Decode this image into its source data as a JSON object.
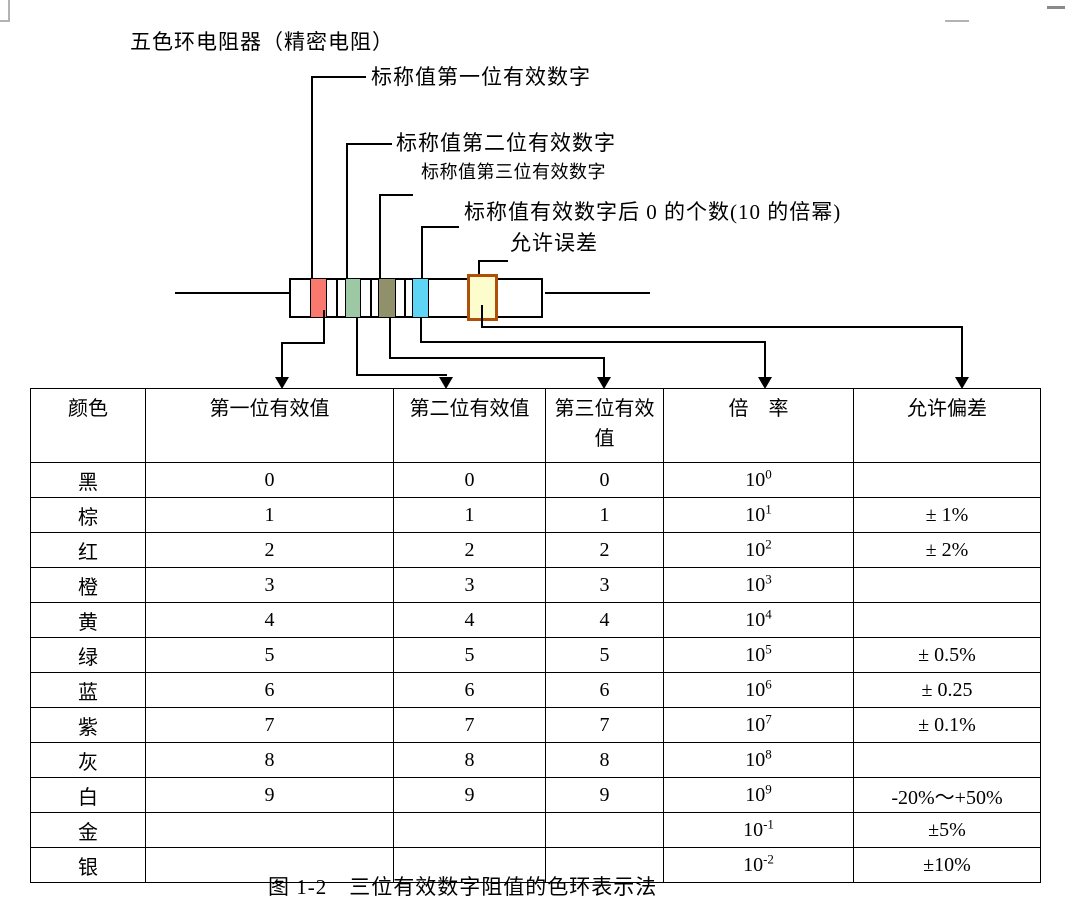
{
  "page": {
    "title": "五色环电阻器（精密电阻）",
    "caption": "图 1-2　三位有效数字阻值的色环表示法"
  },
  "labels": {
    "digit1": "标称值第一位有效数字",
    "digit2": "标称值第二位有效数字",
    "digit3": "标称值第三位有效数字",
    "multiplier": "标称值有效数字后 0 的个数(10 的倍幂)",
    "tolerance": "允许误差"
  },
  "resistor": {
    "band_colors": {
      "digit1": "#f9796f",
      "digit2": "#9cc9a4",
      "digit3": "#90906b",
      "multiplier": "#5ed5f5",
      "tolerance_fill": "#fcfccd",
      "tolerance_border": "#b04f08"
    }
  },
  "table": {
    "headers": [
      "颜色",
      "第一位有效值",
      "第二位有效值",
      "第三位有效值",
      "倍　率",
      "允许偏差"
    ],
    "multiplier_base": "10",
    "rows": [
      {
        "color": "黑",
        "d1": "0",
        "d2": "0",
        "d3": "0",
        "exp": "0",
        "tol": ""
      },
      {
        "color": "棕",
        "d1": "1",
        "d2": "1",
        "d3": "1",
        "exp": "1",
        "tol": "± 1%"
      },
      {
        "color": "红",
        "d1": "2",
        "d2": "2",
        "d3": "2",
        "exp": "2",
        "tol": "± 2%"
      },
      {
        "color": "橙",
        "d1": "3",
        "d2": "3",
        "d3": "3",
        "exp": "3",
        "tol": ""
      },
      {
        "color": "黄",
        "d1": "4",
        "d2": "4",
        "d3": "4",
        "exp": "4",
        "tol": ""
      },
      {
        "color": "绿",
        "d1": "5",
        "d2": "5",
        "d3": "5",
        "exp": "5",
        "tol": "± 0.5%"
      },
      {
        "color": "蓝",
        "d1": "6",
        "d2": "6",
        "d3": "6",
        "exp": "6",
        "tol": "± 0.25"
      },
      {
        "color": "紫",
        "d1": "7",
        "d2": "7",
        "d3": "7",
        "exp": "7",
        "tol": "± 0.1%"
      },
      {
        "color": "灰",
        "d1": "8",
        "d2": "8",
        "d3": "8",
        "exp": "8",
        "tol": ""
      },
      {
        "color": "白",
        "d1": "9",
        "d2": "9",
        "d3": "9",
        "exp": "9",
        "tol": "-20%～+50%"
      },
      {
        "color": "金",
        "d1": "",
        "d2": "",
        "d3": "",
        "exp": "-1",
        "tol": "±5%"
      },
      {
        "color": "银",
        "d1": "",
        "d2": "",
        "d3": "",
        "exp": "-2",
        "tol": "±10%"
      }
    ]
  }
}
